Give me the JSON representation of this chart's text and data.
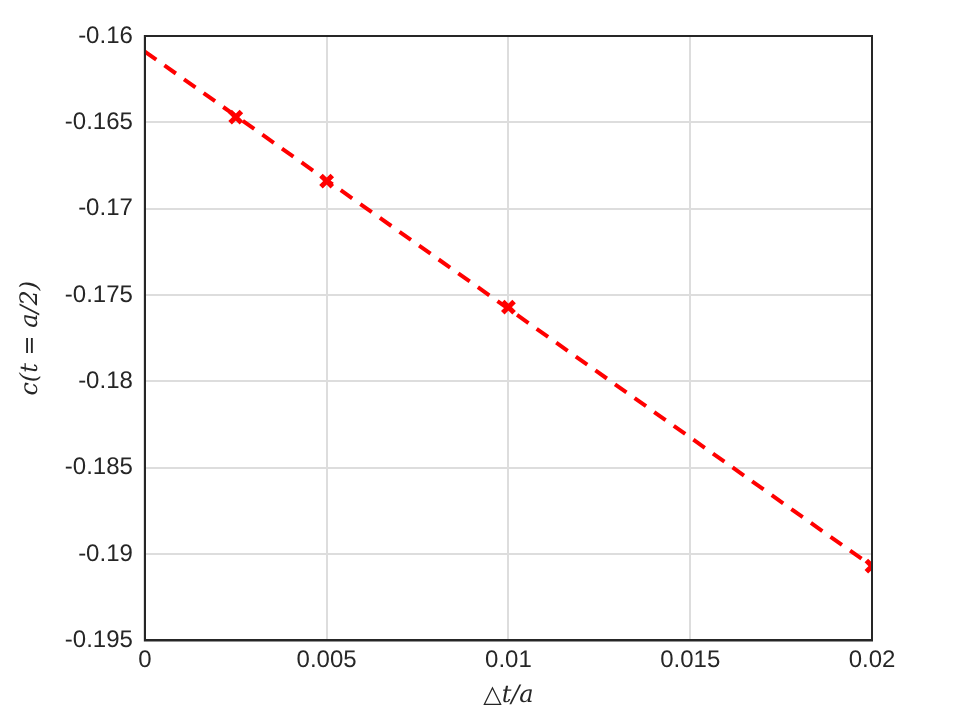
{
  "chart_data": {
    "type": "scatter",
    "xlabel": "△t/a",
    "ylabel": "c(t = a/2)",
    "xlim": [
      0,
      0.02
    ],
    "xticks": [
      0,
      0.005,
      0.01,
      0.015,
      0.02
    ],
    "ylim": [
      -0.195,
      -0.16
    ],
    "yticks": [
      -0.195,
      -0.19,
      -0.185,
      -0.18,
      -0.175,
      -0.17,
      -0.165,
      -0.16
    ],
    "grid": true,
    "legend": false,
    "series": [
      {
        "type": "line",
        "color": "#ff0000",
        "line_style": "dashed",
        "marker": "none",
        "x": [
          0,
          0.02
        ],
        "values": [
          -0.1609,
          -0.1907
        ]
      },
      {
        "type": "scatter",
        "color": "#ff0000",
        "marker": "cross",
        "x": [
          0.0025,
          0.005,
          0.01,
          0.02
        ],
        "values": [
          -0.1647,
          -0.1684,
          -0.1757,
          -0.1907
        ]
      }
    ]
  }
}
